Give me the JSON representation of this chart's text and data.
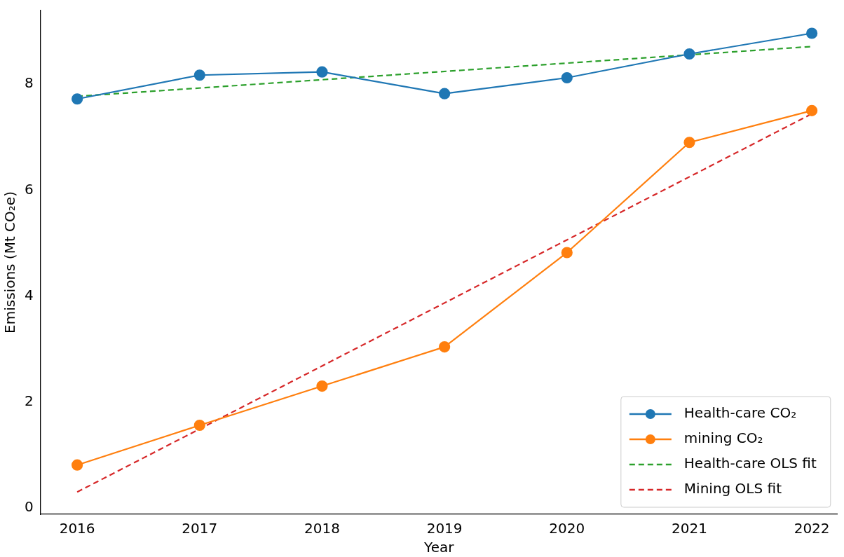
{
  "chart_data": {
    "type": "line",
    "xlabel": "Year",
    "ylabel": "Emissions (Mt CO₂e)",
    "xlim": [
      2015.7,
      2022.21
    ],
    "xticks": [
      2016,
      2017,
      2018,
      2019,
      2020,
      2021,
      2022
    ],
    "ylim": [
      -0.12,
      9.39
    ],
    "yticks": [
      0,
      2,
      4,
      6,
      8
    ],
    "grid": false,
    "legend": "bottom right",
    "series": [
      {
        "name": "Health-care CO₂",
        "color": "#1f77b4",
        "marker": "circle",
        "line_style": "solid",
        "x": [
          2016,
          2017,
          2018,
          2019,
          2020,
          2021,
          2022
        ],
        "values": [
          7.72,
          8.17,
          8.23,
          7.82,
          8.12,
          8.57,
          8.96
        ]
      },
      {
        "name": "mining CO₂",
        "color": "#ff7f0e",
        "marker": "circle",
        "line_style": "solid",
        "x": [
          2016,
          2017,
          2018,
          2019,
          2020,
          2021,
          2022
        ],
        "values": [
          0.81,
          1.56,
          2.3,
          3.04,
          4.82,
          6.9,
          7.5
        ]
      },
      {
        "name": "Health-care OLS fit",
        "color": "#2ca02c",
        "marker": "none",
        "line_style": "dashed",
        "x": [
          2016,
          2022
        ],
        "values": [
          7.77,
          8.71
        ]
      },
      {
        "name": "Mining OLS fit",
        "color": "#d62728",
        "marker": "none",
        "line_style": "dashed",
        "x": [
          2016,
          2022
        ],
        "values": [
          0.3,
          7.44
        ]
      }
    ]
  }
}
